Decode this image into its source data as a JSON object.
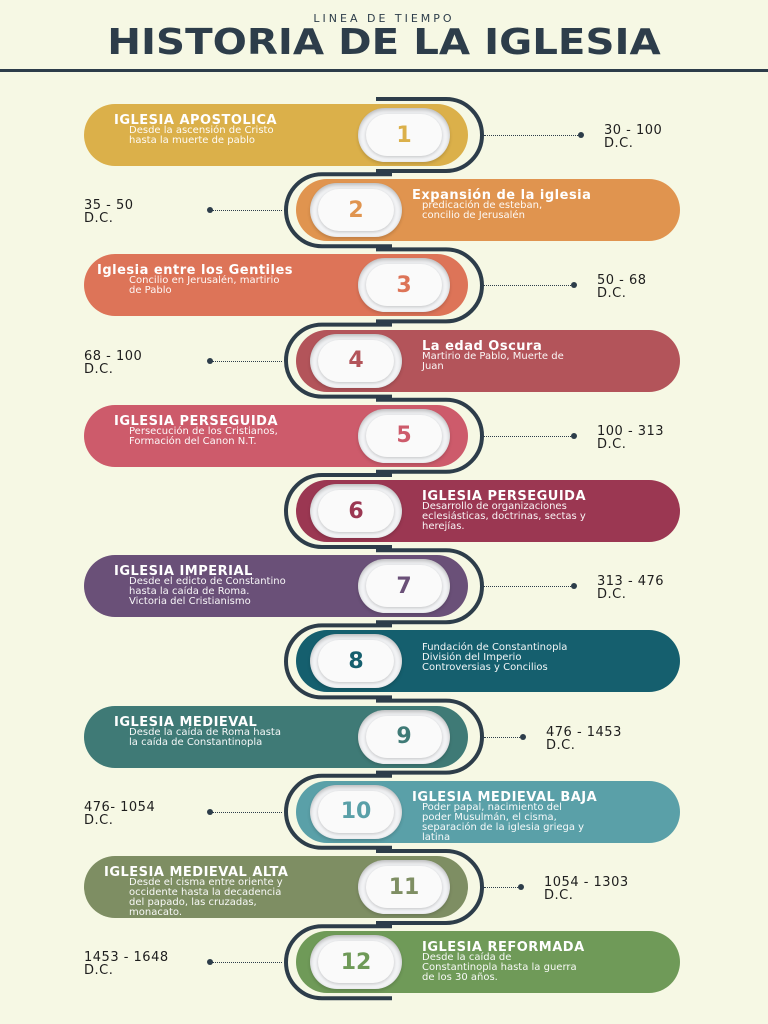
{
  "header": {
    "subtitle": "LINEA DE TIEMPO",
    "title": "HISTORIA DE LA IGLESIA"
  },
  "items": [
    {
      "num": "1",
      "title": "IGLESIA APOSTOLICA",
      "desc": [
        "Desde la ascensión de Cristo",
        "hasta la muerte de pablo"
      ],
      "date": [
        "30 - 100",
        "D.C."
      ],
      "color": "#dbb04a"
    },
    {
      "num": "2",
      "title": "Expansión de la iglesia",
      "desc": [
        "predicación de esteban,",
        "concilio de Jerusalén"
      ],
      "date": [
        "35 - 50",
        "D.C."
      ],
      "color": "#e0944f"
    },
    {
      "num": "3",
      "title": "Iglesia entre los Gentiles",
      "desc": [
        "Concilio en Jerusalén, martirio",
        "de Pablo"
      ],
      "date": [
        "50 - 68",
        "D.C."
      ],
      "color": "#dd7458"
    },
    {
      "num": "4",
      "title": "La edad Oscura",
      "desc": [
        "Martirio de Pablo, Muerte de",
        "Juan"
      ],
      "date": [
        "68 - 100",
        "D.C."
      ],
      "color": "#b3545a"
    },
    {
      "num": "5",
      "title": "IGLESIA PERSEGUIDA",
      "desc": [
        "Persecución de los Cristianos,",
        "Formación del Canon N.T."
      ],
      "date": [
        "100 - 313",
        "D.C."
      ],
      "color": "#cd5b6b"
    },
    {
      "num": "6",
      "title": "IGLESIA PERSEGUIDA",
      "desc": [
        "Desarrollo de organizaciones",
        "eclesiásticas, doctrinas, sectas y",
        "herejías."
      ],
      "date": [],
      "color": "#9b3752"
    },
    {
      "num": "7",
      "title": "IGLESIA IMPERIAL",
      "desc": [
        "Desde el edicto de Constantino",
        "hasta la caída de Roma.",
        "Victoria del Cristianismo"
      ],
      "date": [
        "313 - 476",
        "D.C."
      ],
      "color": "#6a5078"
    },
    {
      "num": "8",
      "title": "",
      "desc": [
        "Fundación de Constantinopla",
        "División del Imperio",
        "Controversias y Concilios"
      ],
      "date": [],
      "color": "#155f6e"
    },
    {
      "num": "9",
      "title": "IGLESIA MEDIEVAL",
      "desc": [
        "Desde la caída de Roma hasta",
        "la caída de Constantinopla"
      ],
      "date": [
        "476 - 1453",
        "D.C."
      ],
      "color": "#3f7a76"
    },
    {
      "num": "10",
      "title": "IGLESIA MEDIEVAL BAJA",
      "desc": [
        "Poder papal, nacimiento del",
        "poder Musulmán, el cisma,",
        "separación de la iglesia griega y",
        "latina"
      ],
      "date": [
        "476- 1054",
        "D.C."
      ],
      "color": "#5aa0a8"
    },
    {
      "num": "11",
      "title": "IGLESIA MEDIEVAL ALTA",
      "desc": [
        "Desde el cisma entre oriente y",
        "occidente hasta la decadencia",
        "del papado, las cruzadas,",
        "monacato."
      ],
      "date": [
        "1054 - 1303",
        "D.C."
      ],
      "color": "#7e8e63"
    },
    {
      "num": "12",
      "title": "IGLESIA REFORMADA",
      "desc": [
        "Desde la caída de",
        "Constantinopla hasta la guerra",
        "de los 30 años."
      ],
      "date": [
        "1453 - 1648",
        "D.C."
      ],
      "color": "#6f9a58"
    }
  ]
}
